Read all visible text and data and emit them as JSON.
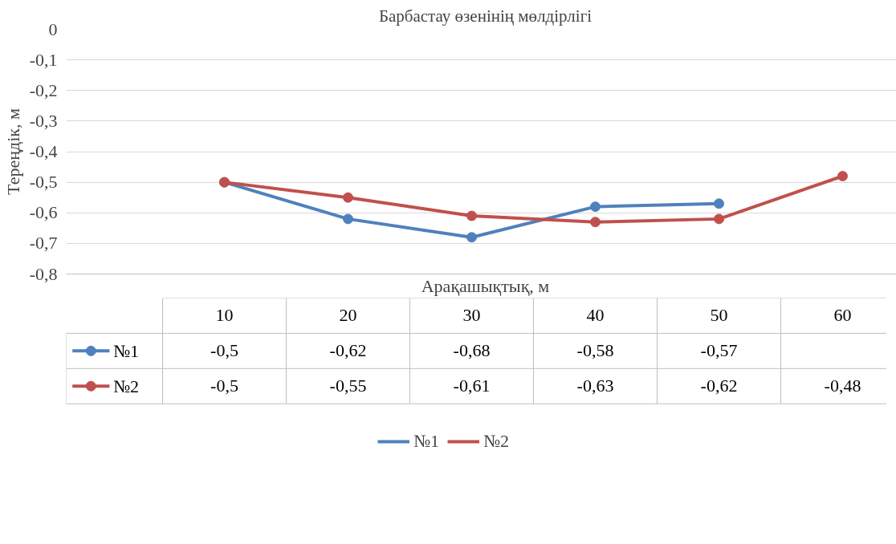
{
  "chart_data": {
    "type": "line",
    "title": "Барбастау өзенінің мөлдірлігі",
    "xlabel": "Арақашықтық, м",
    "ylabel": "Тереңдік, м",
    "categories": [
      "10",
      "20",
      "30",
      "40",
      "50",
      "60"
    ],
    "series": [
      {
        "name": "№1",
        "color": "#4f81bd",
        "values": [
          -0.5,
          -0.62,
          -0.68,
          -0.58,
          -0.57,
          null
        ],
        "value_labels": [
          "-0,5",
          "-0,62",
          "-0,68",
          "-0,58",
          "-0,57",
          null
        ]
      },
      {
        "name": "№2",
        "color": "#c0504d",
        "values": [
          -0.5,
          -0.55,
          -0.61,
          -0.63,
          -0.62,
          -0.48
        ],
        "value_labels": [
          "-0,5",
          "-0,55",
          "-0,61",
          "-0,63",
          "-0,62",
          "-0,48"
        ]
      }
    ],
    "ylim": [
      -0.8,
      0
    ],
    "yticks": [
      0,
      {
        "value": -0.1,
        "label": "-0,1"
      },
      {
        "value": -0.2,
        "label": "-0,2"
      },
      {
        "value": -0.3,
        "label": "-0,3"
      },
      {
        "value": -0.4,
        "label": "-0,4"
      },
      {
        "value": -0.5,
        "label": "-0,5"
      },
      {
        "value": -0.6,
        "label": "-0,6"
      },
      {
        "value": -0.7,
        "label": "-0,7"
      },
      {
        "value": -0.8,
        "label": "-0,8"
      }
    ],
    "grid": "y",
    "legend": "bottom",
    "marker": "circle"
  }
}
